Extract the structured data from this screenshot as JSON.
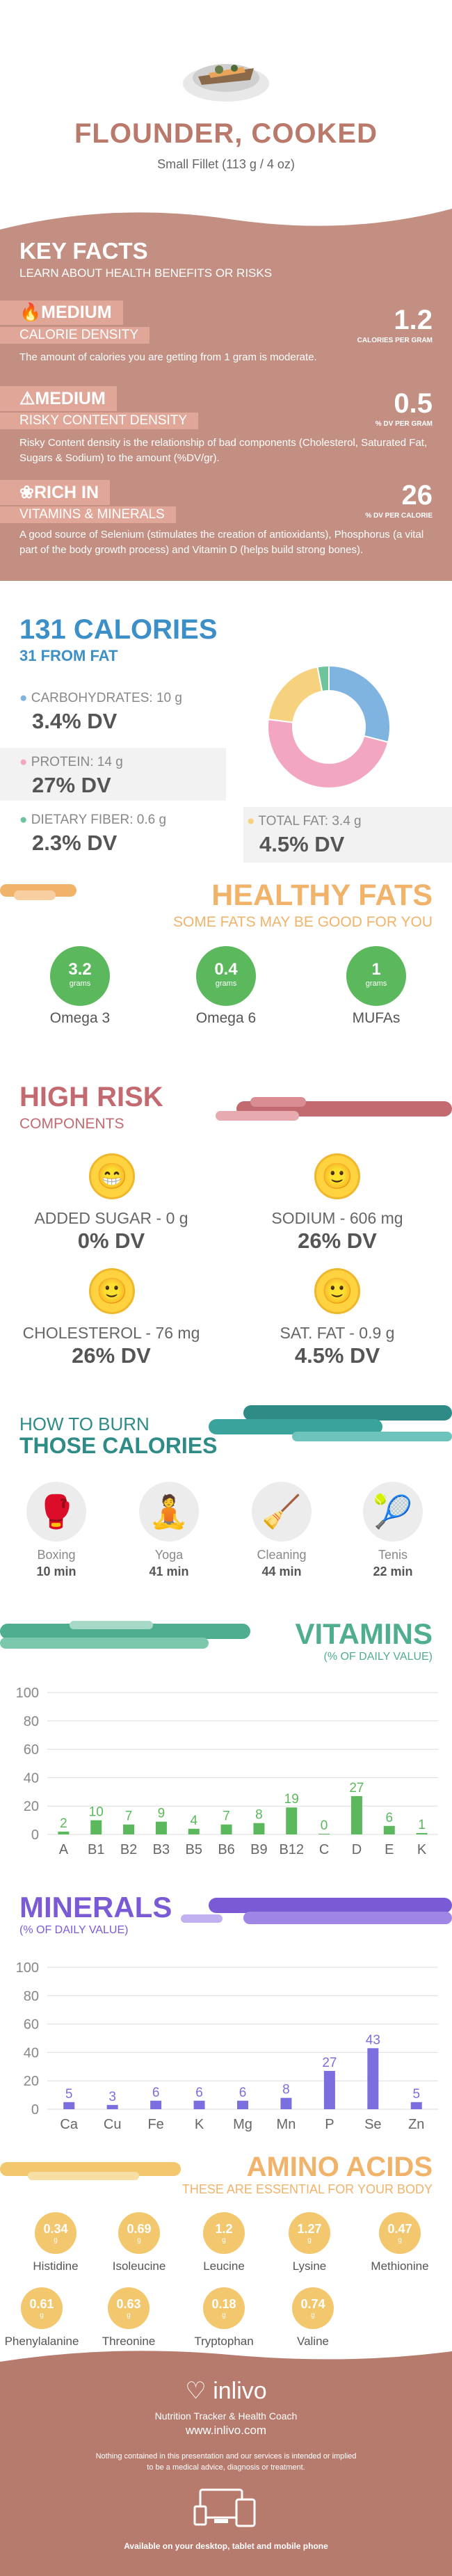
{
  "header": {
    "title": "FLOUNDER, COOKED",
    "subtitle": "Small Fillet (113 g / 4 oz)"
  },
  "key_facts": {
    "title": "KEY FACTS",
    "subtitle": "LEARN ABOUT HEALTH BENEFITS OR RISKS",
    "calorie": {
      "level": "MEDIUM",
      "label": "CALORIE DENSITY",
      "value": "1.2",
      "unit": "CALORIES PER GRAM",
      "desc": "The amount of calories you are getting from 1 gram is moderate."
    },
    "risky": {
      "level": "MEDIUM",
      "label": "RISKY CONTENT DENSITY",
      "value": "0.5",
      "unit": "% DV PER GRAM",
      "desc": "Risky Content density is the relationship of bad components (Cholesterol, Saturated Fat, Sugars & Sodium) to the amount (%DV/gr)."
    },
    "rich": {
      "level": "RICH IN",
      "label": "VITAMINS & MINERALS",
      "value": "26",
      "unit": "% DV PER CALORIE",
      "desc": "A good source of Selenium (stimulates the creation of antioxidants), Phosphorus (a vital part of the body growth process) and Vitamin D (helps build strong bones)."
    }
  },
  "calories": {
    "title": "131 CALORIES",
    "from_fat": "31 FROM FAT",
    "carbs": {
      "label": "CARBOHYDRATES: 10 g",
      "dv": "3.4% DV"
    },
    "protein": {
      "label": "PROTEIN: 14 g",
      "dv": "27% DV"
    },
    "fiber": {
      "label": "DIETARY FIBER: 0.6 g",
      "dv": "2.3% DV"
    },
    "fat": {
      "label": "TOTAL FAT: 3.4 g",
      "dv": "4.5% DV"
    },
    "donut_colors": [
      "#7fb3e0",
      "#f3a6c2",
      "#f6d27f",
      "#6cc49a"
    ]
  },
  "healthy_fats": {
    "title": "HEALTHY FATS",
    "subtitle": "SOME FATS MAY BE GOOD FOR YOU",
    "items": [
      {
        "value": "3.2",
        "unit": "grams",
        "name": "Omega 3"
      },
      {
        "value": "0.4",
        "unit": "grams",
        "name": "Omega 6"
      },
      {
        "value": "1",
        "unit": "grams",
        "name": "MUFAs"
      }
    ]
  },
  "high_risk": {
    "title": "HIGH RISK",
    "subtitle": "COMPONENTS",
    "items": [
      {
        "label": "ADDED SUGAR - 0 g",
        "dv": "0% DV"
      },
      {
        "label": "SODIUM - 606 mg",
        "dv": "26% DV"
      },
      {
        "label": "CHOLESTEROL - 76 mg",
        "dv": "26% DV"
      },
      {
        "label": "SAT. FAT - 0.9 g",
        "dv": "4.5% DV"
      }
    ]
  },
  "burn": {
    "title1": "HOW TO BURN",
    "title2": "THOSE CALORIES",
    "items": [
      {
        "name": "Boxing",
        "time": "10 min"
      },
      {
        "name": "Yoga",
        "time": "41 min"
      },
      {
        "name": "Cleaning",
        "time": "44 min"
      },
      {
        "name": "Tenis",
        "time": "22 min"
      }
    ]
  },
  "vitamins": {
    "title": "VITAMINS",
    "subtitle": "(% OF DAILY VALUE)"
  },
  "minerals": {
    "title": "MINERALS",
    "subtitle": "(% OF DAILY VALUE)"
  },
  "chart_data": [
    {
      "type": "bar",
      "title": "VITAMINS",
      "categories": [
        "A",
        "B1",
        "B2",
        "B3",
        "B5",
        "B6",
        "B9",
        "B12",
        "C",
        "D",
        "E",
        "K"
      ],
      "values": [
        2,
        10,
        7,
        9,
        4,
        7,
        8,
        19,
        0,
        27,
        6,
        1
      ],
      "yticks": [
        0,
        20,
        40,
        60,
        80,
        100
      ],
      "ylim": [
        0,
        100
      ],
      "color": "#5bb85c"
    },
    {
      "type": "bar",
      "title": "MINERALS",
      "categories": [
        "Ca",
        "Cu",
        "Fe",
        "K",
        "Mg",
        "Mn",
        "P",
        "Se",
        "Zn"
      ],
      "values": [
        5,
        3,
        6,
        6,
        6,
        8,
        27,
        43,
        5
      ],
      "yticks": [
        0,
        20,
        40,
        60,
        80,
        100
      ],
      "ylim": [
        0,
        100
      ],
      "color": "#7b6fe0"
    }
  ],
  "amino": {
    "title": "AMINO ACIDS",
    "subtitle": "THESE ARE ESSENTIAL FOR YOUR BODY",
    "items": [
      {
        "value": "0.34",
        "unit": "g",
        "name": "Histidine"
      },
      {
        "value": "0.69",
        "unit": "g",
        "name": "Isoleucine"
      },
      {
        "value": "1.2",
        "unit": "g",
        "name": "Leucine"
      },
      {
        "value": "1.27",
        "unit": "g",
        "name": "Lysine"
      },
      {
        "value": "0.47",
        "unit": "g",
        "name": "Methionine"
      },
      {
        "value": "0.61",
        "unit": "g",
        "name": "Phenylalanine"
      },
      {
        "value": "0.63",
        "unit": "g",
        "name": "Threonine"
      },
      {
        "value": "0.18",
        "unit": "g",
        "name": "Tryptophan"
      },
      {
        "value": "0.74",
        "unit": "g",
        "name": "Valine"
      }
    ]
  },
  "footer": {
    "brand": "inlivo",
    "tagline": "Nutrition Tracker & Health Coach",
    "url": "www.inlivo.com",
    "disclaimer1": "Nothing contained in this presentation and our services is intended or implied",
    "disclaimer2": "to be a medical advice, diagnosis or treatment.",
    "devices": "Available on your desktop, tablet and mobile phone"
  }
}
